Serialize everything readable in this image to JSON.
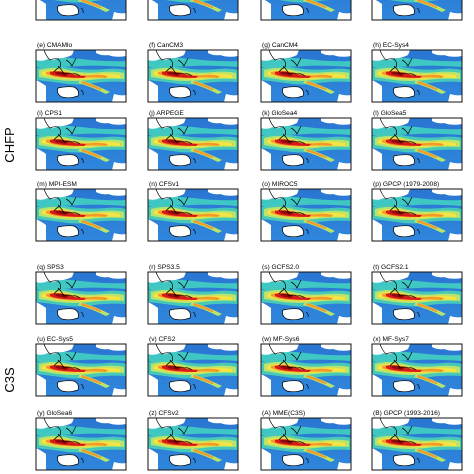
{
  "figure": {
    "groups": [
      {
        "label": "CHFP"
      },
      {
        "label": "C3S"
      }
    ],
    "panels": [
      {
        "title": "",
        "group": 0
      },
      {
        "title": "",
        "group": 0
      },
      {
        "title": "",
        "group": 0
      },
      {
        "title": "",
        "group": 0
      },
      {
        "title": "(e) CMAMlo",
        "group": 0
      },
      {
        "title": "(f) CanCM3",
        "group": 0
      },
      {
        "title": "(g) CanCM4",
        "group": 0
      },
      {
        "title": "(h) EC-Sys4",
        "group": 0
      },
      {
        "title": "(i) CPS1",
        "group": 0
      },
      {
        "title": "(j) ARPEGE",
        "group": 0
      },
      {
        "title": "(k) GloSea4",
        "group": 0
      },
      {
        "title": "(l) GloSea5",
        "group": 0
      },
      {
        "title": "(m) MPI-ESM",
        "group": 0
      },
      {
        "title": "(n) CFSv1",
        "group": 0
      },
      {
        "title": "(o) MIROC5",
        "group": 0
      },
      {
        "title": "(p) GPCP (1979-2008)",
        "group": 0
      },
      {
        "title": "(q) SPS3",
        "group": 1
      },
      {
        "title": "(r) SPS3.5",
        "group": 1
      },
      {
        "title": "(s) GCFS2.0",
        "group": 1
      },
      {
        "title": "(t) GCFS2.1",
        "group": 1
      },
      {
        "title": "(u) EC-Sys5",
        "group": 1
      },
      {
        "title": "(v) CFS2",
        "group": 1
      },
      {
        "title": "(w) MF-Sys6",
        "group": 1
      },
      {
        "title": "(x) MF-Sys7",
        "group": 1
      },
      {
        "title": "(y) GloSea6",
        "group": 1
      },
      {
        "title": "(z) CFSv2",
        "group": 1
      },
      {
        "title": "(A) MME(C3S)",
        "group": 1
      },
      {
        "title": "(B) GPCP (1993-2016)",
        "group": 1
      }
    ],
    "colors": {
      "ocean_low": "#2c7bd6",
      "mid": "#3fc7c4",
      "light": "#b9e36a",
      "yellow": "#f4e542",
      "orange": "#f39a2b",
      "red": "#d7191c",
      "dark_red": "#8b0a0a",
      "land": "#ffffff",
      "coast": "#000000"
    }
  }
}
